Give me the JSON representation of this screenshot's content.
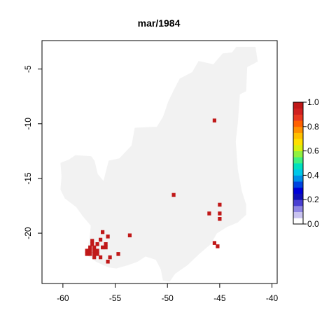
{
  "chart_data": {
    "type": "heatmap",
    "title": "mar/1984",
    "xlabel": "",
    "ylabel": "",
    "xlim": [
      -62,
      -39.5
    ],
    "ylim": [
      -24.6,
      -2.4
    ],
    "x_ticks": [
      -60,
      -55,
      -50,
      -45,
      -40
    ],
    "y_ticks": [
      -5,
      -10,
      -15,
      -20
    ],
    "x_tick_labels": [
      "-60",
      "-55",
      "-50",
      "-45",
      "-40"
    ],
    "y_tick_labels": [
      "-5",
      "-10",
      "-15",
      "-20"
    ],
    "grid": false,
    "background_fill_color": "#f2f2f2",
    "region_outline_lonlat": [
      [
        -43.4,
        -3.0
      ],
      [
        -41.6,
        -3.0
      ],
      [
        -41.4,
        -4.3
      ],
      [
        -42.4,
        -4.8
      ],
      [
        -42.5,
        -7.0
      ],
      [
        -43.1,
        -7.3
      ],
      [
        -43.3,
        -9.9
      ],
      [
        -43.5,
        -11.6
      ],
      [
        -43.3,
        -14.2
      ],
      [
        -42.9,
        -16.2
      ],
      [
        -42.5,
        -17.4
      ],
      [
        -42.5,
        -18.3
      ],
      [
        -43.3,
        -19.0
      ],
      [
        -44.3,
        -19.4
      ],
      [
        -45.3,
        -20.0
      ],
      [
        -45.9,
        -21.0
      ],
      [
        -47.0,
        -21.9
      ],
      [
        -48.1,
        -22.9
      ],
      [
        -49.3,
        -23.7
      ],
      [
        -49.8,
        -24.4
      ],
      [
        -50.4,
        -24.3
      ],
      [
        -50.6,
        -23.3
      ],
      [
        -51.1,
        -22.4
      ],
      [
        -52.1,
        -22.1
      ],
      [
        -52.9,
        -22.6
      ],
      [
        -53.8,
        -22.9
      ],
      [
        -54.9,
        -23.2
      ],
      [
        -55.6,
        -23.1
      ],
      [
        -56.8,
        -22.6
      ],
      [
        -57.5,
        -22.1
      ],
      [
        -57.6,
        -21.4
      ],
      [
        -57.4,
        -20.3
      ],
      [
        -57.3,
        -19.3
      ],
      [
        -58.1,
        -18.4
      ],
      [
        -58.7,
        -17.6
      ],
      [
        -59.8,
        -16.8
      ],
      [
        -60.2,
        -16.0
      ],
      [
        -60.1,
        -14.8
      ],
      [
        -60.2,
        -13.6
      ],
      [
        -59.4,
        -13.3
      ],
      [
        -58.8,
        -12.9
      ],
      [
        -57.3,
        -13.0
      ],
      [
        -57.0,
        -13.4
      ],
      [
        -56.7,
        -14.6
      ],
      [
        -56.1,
        -15.3
      ],
      [
        -55.6,
        -13.4
      ],
      [
        -54.6,
        -13.2
      ],
      [
        -53.4,
        -12.0
      ],
      [
        -53.1,
        -10.4
      ],
      [
        -51.0,
        -10.3
      ],
      [
        -50.4,
        -9.4
      ],
      [
        -49.9,
        -8.0
      ],
      [
        -49.3,
        -6.8
      ],
      [
        -48.8,
        -5.9
      ],
      [
        -47.6,
        -5.3
      ],
      [
        -47.0,
        -4.3
      ],
      [
        -45.6,
        -4.6
      ],
      [
        -44.7,
        -3.6
      ],
      [
        -43.8,
        -3.5
      ],
      [
        -43.4,
        -3.0
      ]
    ],
    "cells_value": 1.0,
    "cell_size_deg": 0.35,
    "cells": [
      [
        -45.5,
        -9.7
      ],
      [
        -49.4,
        -16.5
      ],
      [
        -45.0,
        -17.4
      ],
      [
        -45.0,
        -18.2
      ],
      [
        -46.0,
        -18.2
      ],
      [
        -45.0,
        -18.7
      ],
      [
        -45.5,
        -20.9
      ],
      [
        -45.2,
        -21.2
      ],
      [
        -53.6,
        -20.2
      ],
      [
        -56.2,
        -19.9
      ],
      [
        -55.7,
        -20.3
      ],
      [
        -56.4,
        -20.6
      ],
      [
        -57.2,
        -20.7
      ],
      [
        -57.2,
        -21.0
      ],
      [
        -56.7,
        -21.0
      ],
      [
        -55.9,
        -21.0
      ],
      [
        -56.2,
        -21.3
      ],
      [
        -55.9,
        -21.3
      ],
      [
        -57.4,
        -21.3
      ],
      [
        -57.0,
        -21.3
      ],
      [
        -57.7,
        -21.6
      ],
      [
        -57.4,
        -21.6
      ],
      [
        -57.0,
        -21.6
      ],
      [
        -56.7,
        -21.6
      ],
      [
        -57.7,
        -21.9
      ],
      [
        -57.4,
        -21.9
      ],
      [
        -57.0,
        -21.9
      ],
      [
        -56.7,
        -21.9
      ],
      [
        -54.7,
        -21.9
      ],
      [
        -57.0,
        -22.2
      ],
      [
        -56.4,
        -22.2
      ],
      [
        -55.5,
        -22.2
      ],
      [
        -55.7,
        -22.6
      ]
    ],
    "legend": {
      "position": "right",
      "ticks": [
        "0.0",
        "0.2",
        "0.4",
        "0.6",
        "0.8",
        "1.0"
      ],
      "colors": [
        "#ffffff",
        "#c9c3f0",
        "#8f86e3",
        "#4a3fd1",
        "#1010b8",
        "#0000d8",
        "#0044e0",
        "#0090e8",
        "#00c8e8",
        "#00e0c0",
        "#40f080",
        "#90f040",
        "#d8f010",
        "#ffe000",
        "#ffc000",
        "#ff9000",
        "#ff6000",
        "#e83820",
        "#d02020",
        "#c01818"
      ]
    }
  }
}
